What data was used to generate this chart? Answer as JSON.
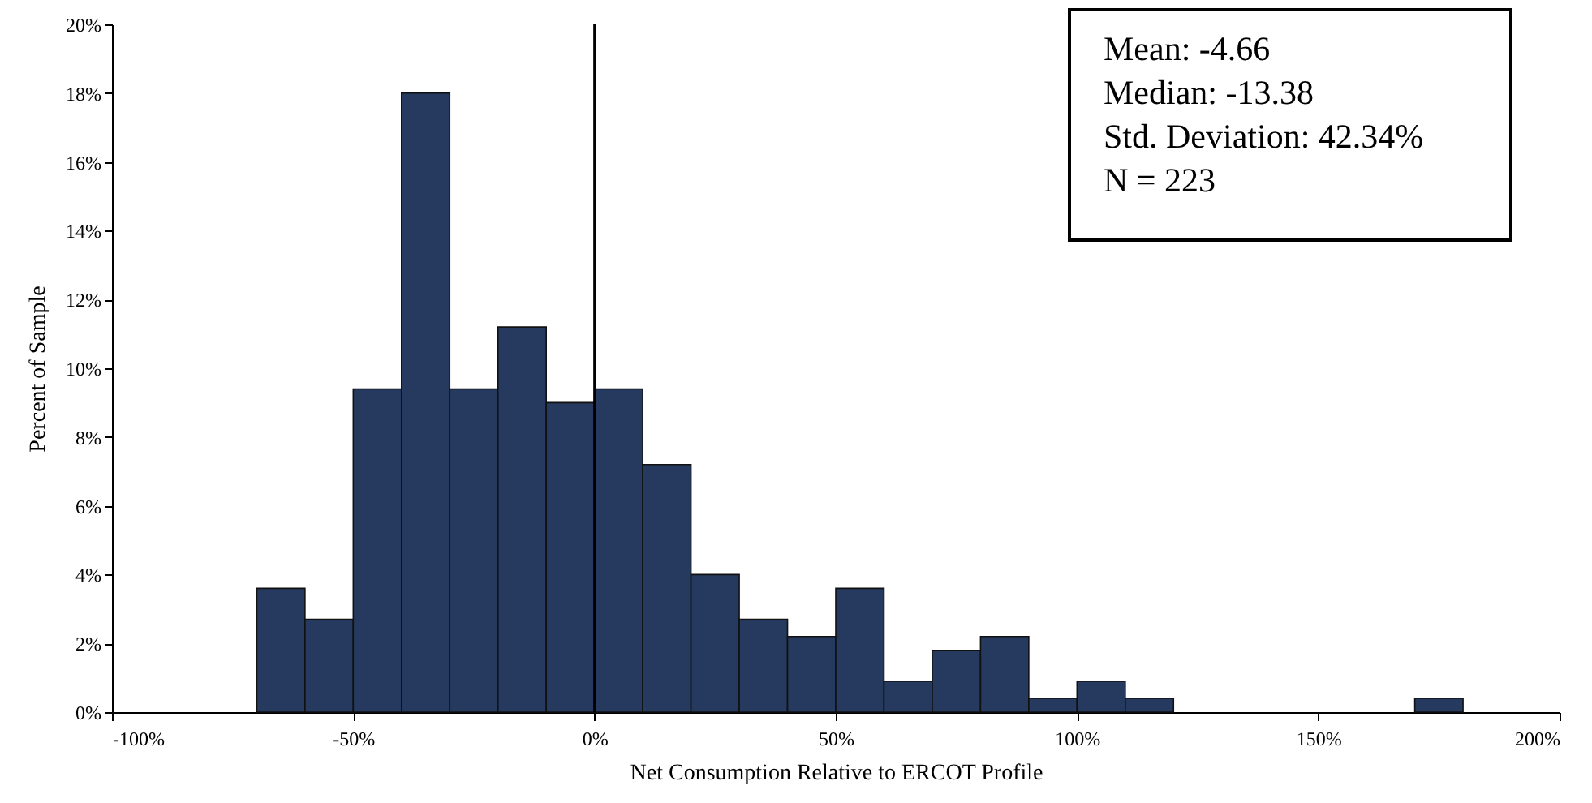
{
  "chart_data": {
    "type": "histogram",
    "xlabel": "Net Consumption Relative to ERCOT Profile",
    "ylabel": "Percent of Sample",
    "bins": [
      -70,
      -60,
      -50,
      -40,
      -30,
      -20,
      -10,
      0,
      10,
      20,
      30,
      40,
      50,
      60,
      70,
      80,
      90,
      100,
      110,
      120,
      130,
      140,
      150,
      160,
      170,
      180
    ],
    "values": [
      3.6,
      2.7,
      9.4,
      18.0,
      9.4,
      11.2,
      9.0,
      9.4,
      7.2,
      4.0,
      2.7,
      2.2,
      3.6,
      0.9,
      1.8,
      2.2,
      0.4,
      0.9,
      0.4,
      0,
      0,
      0,
      0,
      0,
      0.4
    ],
    "color": "#253a5e",
    "xlim": [
      -100,
      200
    ],
    "xticks": [
      {
        "value": -100,
        "label": "-100%"
      },
      {
        "value": -50,
        "label": "-50%"
      },
      {
        "value": 0,
        "label": "0%"
      },
      {
        "value": 50,
        "label": "50%"
      },
      {
        "value": 100,
        "label": "100%"
      },
      {
        "value": 150,
        "label": "150%"
      },
      {
        "value": 200,
        "label": "200%"
      }
    ],
    "ylim": [
      0,
      20
    ],
    "yticks": [
      {
        "value": 0,
        "label": "0%"
      },
      {
        "value": 2,
        "label": "2%"
      },
      {
        "value": 4,
        "label": "4%"
      },
      {
        "value": 6,
        "label": "6%"
      },
      {
        "value": 8,
        "label": "8%"
      },
      {
        "value": 10,
        "label": "10%"
      },
      {
        "value": 12,
        "label": "12%"
      },
      {
        "value": 14,
        "label": "14%"
      },
      {
        "value": 16,
        "label": "16%"
      },
      {
        "value": 18,
        "label": "18%"
      },
      {
        "value": 20,
        "label": "20%"
      }
    ],
    "ref_lines": [
      {
        "axis": "x",
        "value": 0,
        "color": "#000000"
      }
    ],
    "annotations": [
      "Mean: -4.66",
      "Median: -13.38",
      "Std. Deviation: 42.34%",
      "N = 223"
    ],
    "grid": false
  }
}
